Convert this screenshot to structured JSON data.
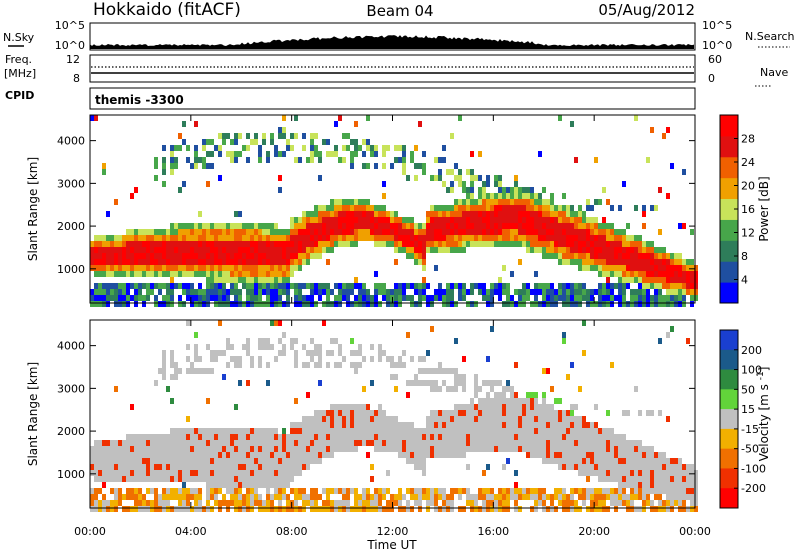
{
  "header": {
    "station": "Hokkaido (fitACF)",
    "beam": "Beam 04",
    "date": "05/Aug/2012"
  },
  "strip_labels": {
    "nsky": "N.Sky",
    "nsky_ticks": [
      "10^5",
      "10^0"
    ],
    "nsearch": "N.Search",
    "nsearch_ticks": [
      "10^5",
      "10^0"
    ],
    "freq": "Freq.",
    "freq_unit": "[MHz]",
    "freq_ticks": [
      "12",
      "8"
    ],
    "nave": "Nave",
    "nave_ticks": [
      "60",
      "0"
    ],
    "cpid": "CPID",
    "cpid_value": "themis -3300"
  },
  "colors": {
    "power_scale": [
      "#0000ff",
      "#1f4fa0",
      "#2e7d5a",
      "#47a64a",
      "#c8e35a",
      "#f0a000",
      "#f06000",
      "#e01010",
      "#ff0000"
    ],
    "velocity_scale": [
      "#1a3fd0",
      "#1b5a8a",
      "#2e8b3f",
      "#62d43a",
      "#c0c0c0",
      "#f2b000",
      "#f07000",
      "#f03000",
      "#ff0000"
    ]
  },
  "chart_data": [
    {
      "type": "heatmap",
      "name": "power",
      "xlabel": "",
      "ylabel": "Slant Range [km]",
      "x_ticks": [
        "00:00",
        "04:00",
        "08:00",
        "12:00",
        "16:00",
        "20:00",
        "00:00"
      ],
      "y_ticks": [
        "1000",
        "2000",
        "3000",
        "4000"
      ],
      "ylim": [
        200,
        4600
      ],
      "colorbar": {
        "label": "Power [dB]",
        "ticks": [
          "4",
          "8",
          "12",
          "16",
          "20",
          "24",
          "28"
        ],
        "range": [
          0,
          32
        ]
      }
    },
    {
      "type": "heatmap",
      "name": "velocity",
      "xlabel": "Time UT",
      "ylabel": "Slant Range [km]",
      "x_ticks": [
        "00:00",
        "04:00",
        "08:00",
        "12:00",
        "16:00",
        "20:00",
        "00:00"
      ],
      "y_ticks": [
        "1000",
        "2000",
        "3000",
        "4000"
      ],
      "ylim": [
        200,
        4600
      ],
      "colorbar": {
        "label": "Velocity [m s^-1]",
        "ticks": [
          "200",
          "100",
          "50",
          "15",
          "-15",
          "-50",
          "-100",
          "-200"
        ]
      }
    }
  ]
}
